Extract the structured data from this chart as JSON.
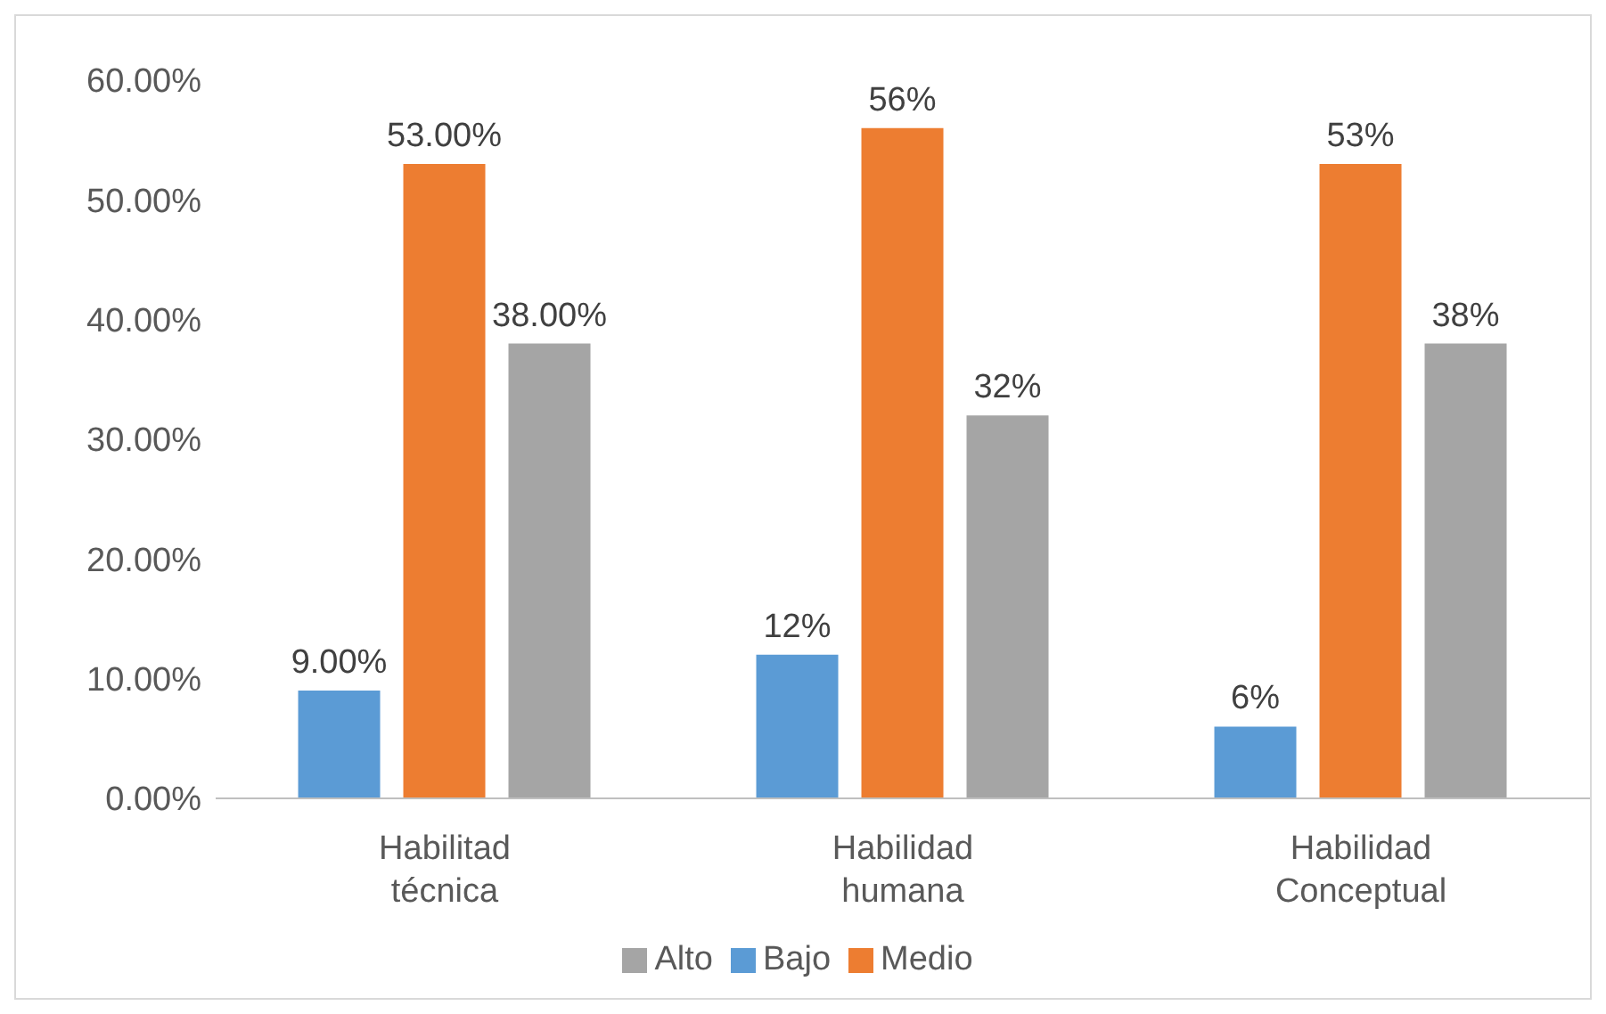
{
  "chart_data": {
    "type": "bar",
    "categories": [
      "Habilitad técnica",
      "Habilidad humana",
      "Habilidad Conceptual"
    ],
    "series": [
      {
        "name": "Bajo",
        "color": "#5b9bd5",
        "values": [
          9,
          12,
          6
        ],
        "value_labels": [
          "9.00%",
          "12%",
          "6%"
        ]
      },
      {
        "name": "Medio",
        "color": "#ed7d31",
        "values": [
          53,
          56,
          53
        ],
        "value_labels": [
          "53.00%",
          "56%",
          "53%"
        ]
      },
      {
        "name": "Alto",
        "color": "#a5a5a5",
        "values": [
          38,
          32,
          38
        ],
        "value_labels": [
          "38.00%",
          "32%",
          "38%"
        ]
      }
    ],
    "ylim": [
      0,
      60
    ],
    "yticks": [
      {
        "value": 0,
        "label": "0.00%"
      },
      {
        "value": 10,
        "label": "10.00%"
      },
      {
        "value": 20,
        "label": "20.00%"
      },
      {
        "value": 30,
        "label": "30.00%"
      },
      {
        "value": 40,
        "label": "40.00%"
      },
      {
        "value": 50,
        "label": "50.00%"
      },
      {
        "value": 60,
        "label": "60.00%"
      }
    ],
    "grid": false,
    "legend": "bottom"
  }
}
